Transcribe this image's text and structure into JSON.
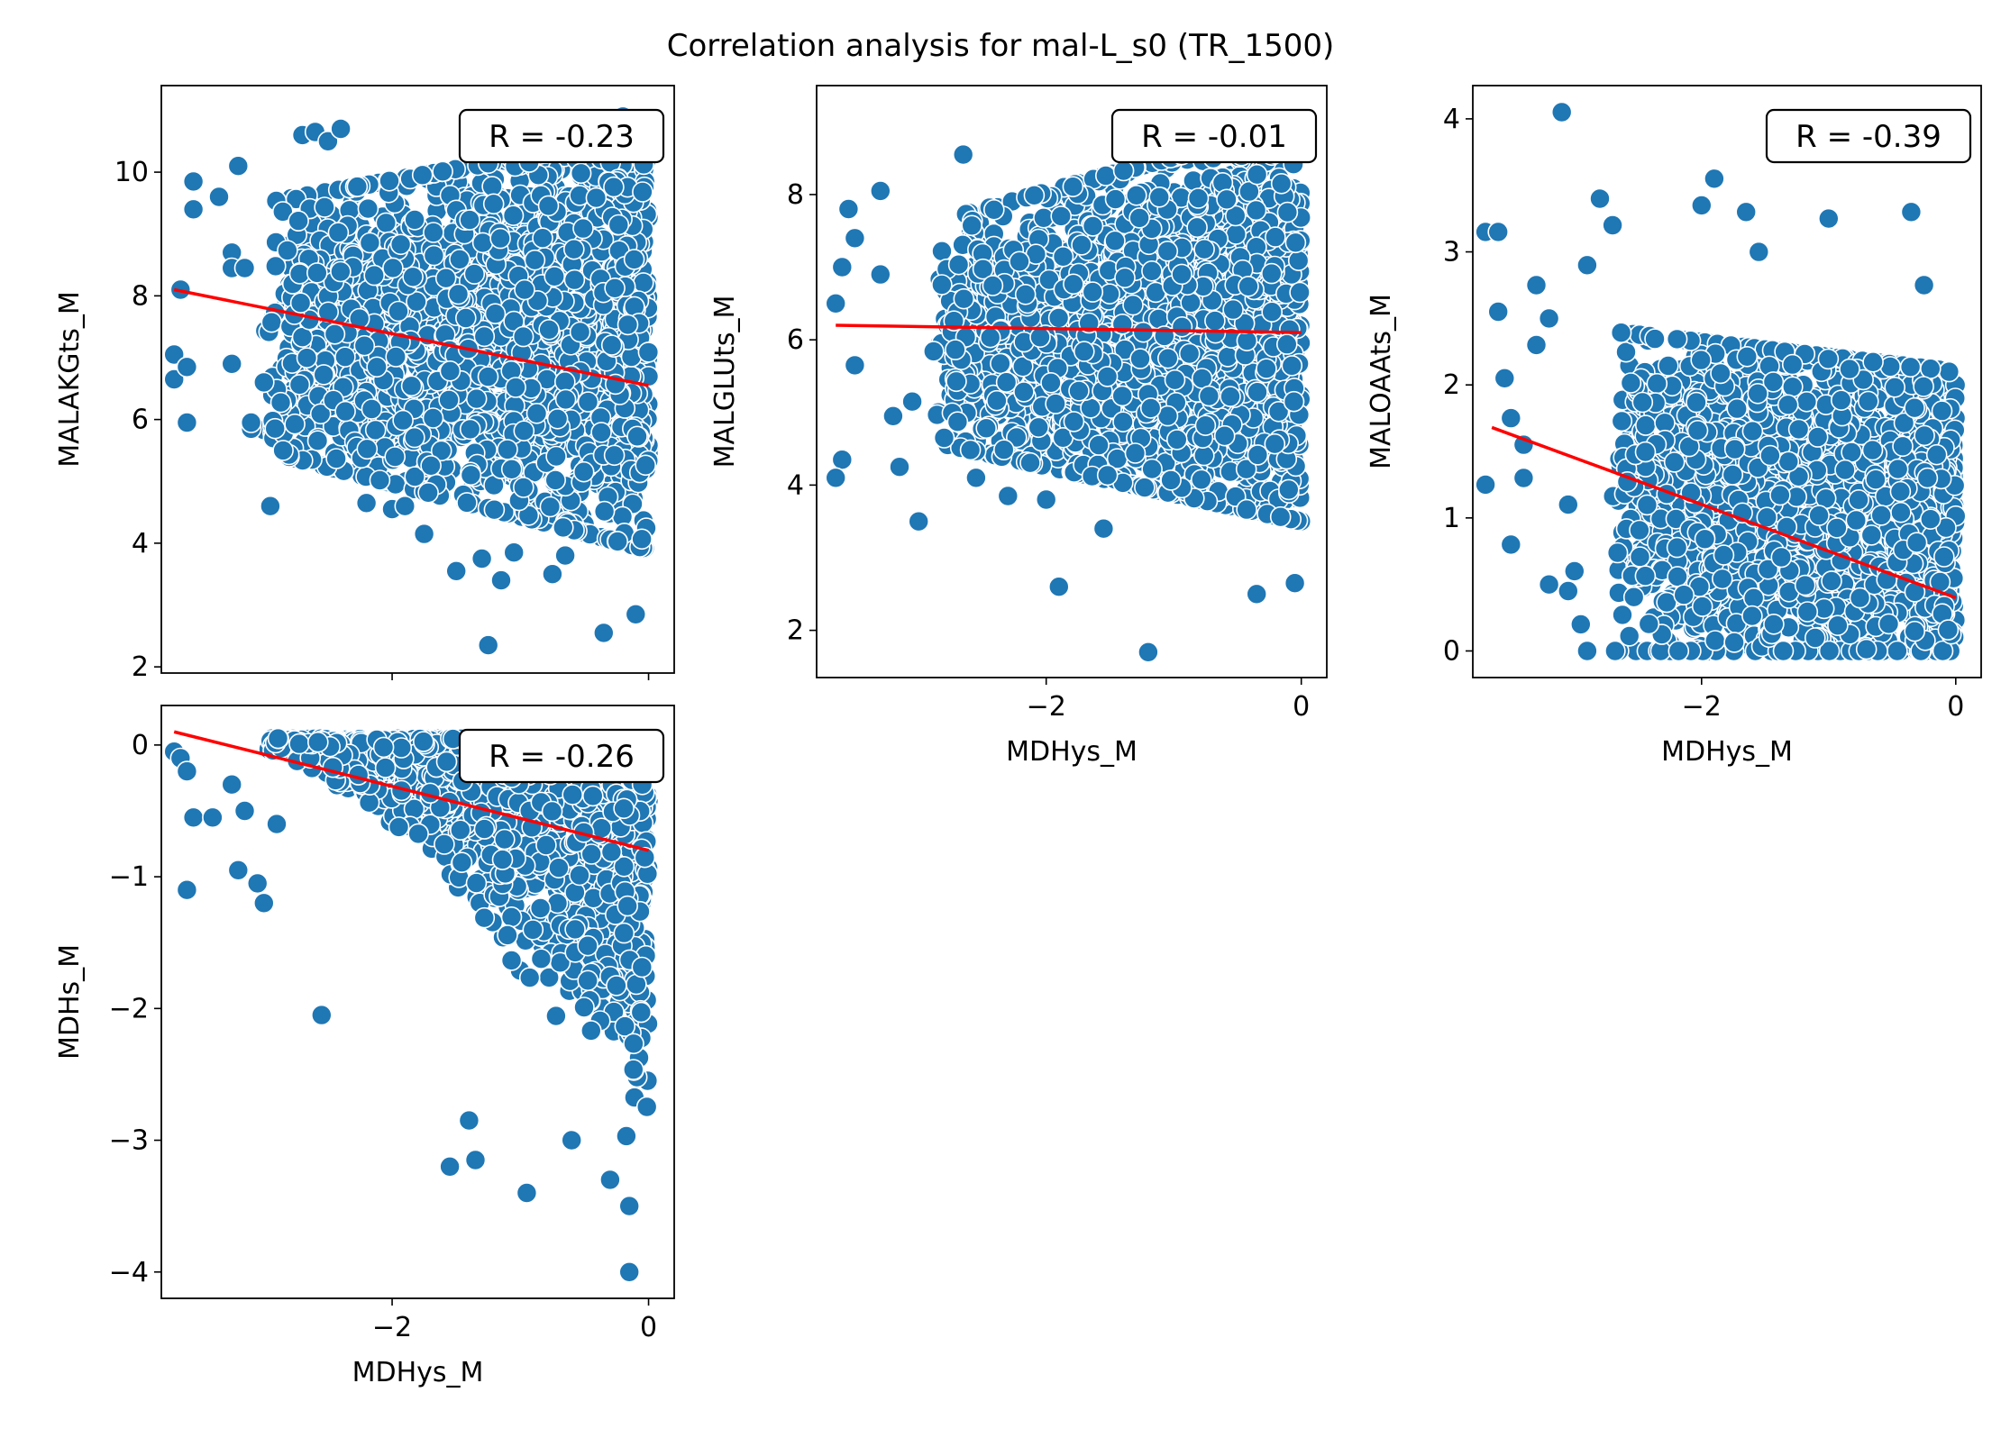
{
  "figure": {
    "title": "Correlation analysis for mal-L_s0 (TR_1500)",
    "colors": {
      "points": "#1f77b4",
      "point_edge": "#ffffff",
      "fit_line": "#ff0000",
      "axis": "#000000"
    }
  },
  "chart_data": [
    {
      "type": "scatter",
      "xlabel": "",
      "ylabel": "MALAKGts_M",
      "r_label": "R = -0.23",
      "xlim": [
        -3.8,
        0.2
      ],
      "ylim": [
        1.9,
        11.4
      ],
      "xticks": [
        -2,
        0
      ],
      "xtick_labels": [
        "",
        ""
      ],
      "yticks": [
        2,
        4,
        6,
        8,
        10
      ],
      "ytick_labels": [
        "2",
        "4",
        "6",
        "8",
        "10"
      ],
      "fit": {
        "x": [
          -3.7,
          0
        ],
        "y": [
          8.1,
          6.55
        ]
      },
      "cloud": {
        "x_min": -3.0,
        "x_max": 0.0,
        "lo_left": 5.5,
        "hi_left": 9.5,
        "lo_right": 3.9,
        "hi_right": 10.6,
        "n": 2200,
        "seed": 11
      },
      "outliers": [
        [
          -3.7,
          7.05
        ],
        [
          -3.7,
          6.65
        ],
        [
          -3.65,
          8.1
        ],
        [
          -3.6,
          6.85
        ],
        [
          -3.6,
          5.95
        ],
        [
          -3.55,
          9.4
        ],
        [
          -3.55,
          9.85
        ],
        [
          -3.35,
          9.6
        ],
        [
          -3.25,
          8.7
        ],
        [
          -3.25,
          8.45
        ],
        [
          -3.25,
          6.9
        ],
        [
          -3.2,
          10.1
        ],
        [
          -3.15,
          8.45
        ],
        [
          -3.1,
          5.85
        ],
        [
          -3.1,
          5.95
        ],
        [
          -3.0,
          6.6
        ],
        [
          -2.95,
          4.6
        ],
        [
          -2.85,
          5.5
        ],
        [
          -2.7,
          10.6
        ],
        [
          -2.6,
          10.65
        ],
        [
          -2.5,
          10.5
        ],
        [
          -2.4,
          10.7
        ],
        [
          -2.2,
          4.65
        ],
        [
          -2.0,
          4.55
        ],
        [
          -1.9,
          4.6
        ],
        [
          -1.75,
          4.15
        ],
        [
          -1.5,
          3.55
        ],
        [
          -1.3,
          3.75
        ],
        [
          -1.25,
          2.35
        ],
        [
          -1.15,
          3.4
        ],
        [
          -1.05,
          3.85
        ],
        [
          -0.75,
          3.5
        ],
        [
          -0.65,
          3.8
        ],
        [
          -0.35,
          2.55
        ],
        [
          -0.1,
          2.85
        ],
        [
          -0.2,
          10.9
        ],
        [
          -0.5,
          10.6
        ]
      ]
    },
    {
      "type": "scatter",
      "xlabel": "MDHys_M",
      "ylabel": "MALGLUts_M",
      "r_label": "R = -0.01",
      "xlim": [
        -3.8,
        0.2
      ],
      "ylim": [
        1.35,
        9.5
      ],
      "xticks": [
        -2,
        0
      ],
      "xtick_labels": [
        "−2",
        "0"
      ],
      "yticks": [
        2,
        4,
        6,
        8
      ],
      "ytick_labels": [
        "2",
        "4",
        "6",
        "8"
      ],
      "fit": {
        "x": [
          -3.65,
          0
        ],
        "y": [
          6.2,
          6.1
        ]
      },
      "cloud": {
        "x_min": -2.9,
        "x_max": 0.0,
        "lo_left": 4.6,
        "hi_left": 7.6,
        "lo_right": 3.5,
        "hi_right": 9.0,
        "n": 2300,
        "seed": 23
      },
      "outliers": [
        [
          -3.65,
          6.5
        ],
        [
          -3.6,
          7.0
        ],
        [
          -3.55,
          7.8
        ],
        [
          -3.5,
          7.4
        ],
        [
          -3.5,
          5.65
        ],
        [
          -3.6,
          4.35
        ],
        [
          -3.65,
          4.1
        ],
        [
          -3.3,
          8.05
        ],
        [
          -3.3,
          6.9
        ],
        [
          -3.2,
          4.95
        ],
        [
          -3.15,
          4.25
        ],
        [
          -3.05,
          5.15
        ],
        [
          -3.0,
          3.5
        ],
        [
          -2.8,
          4.65
        ],
        [
          -2.65,
          8.55
        ],
        [
          -2.55,
          4.1
        ],
        [
          -2.3,
          3.85
        ],
        [
          -2.0,
          3.8
        ],
        [
          -1.9,
          2.6
        ],
        [
          -1.55,
          3.4
        ],
        [
          -1.2,
          1.7
        ],
        [
          -0.35,
          2.5
        ],
        [
          -0.05,
          2.65
        ],
        [
          -0.9,
          9.05
        ],
        [
          -0.5,
          9.05
        ]
      ]
    },
    {
      "type": "scatter",
      "xlabel": "MDHys_M",
      "ylabel": "MALOAAts_M",
      "r_label": "R = -0.39",
      "xlim": [
        -3.8,
        0.2
      ],
      "ylim": [
        -0.2,
        4.25
      ],
      "xticks": [
        -2,
        0
      ],
      "xtick_labels": [
        "−2",
        "0"
      ],
      "yticks": [
        0,
        1,
        2,
        3,
        4
      ],
      "ytick_labels": [
        "0",
        "1",
        "2",
        "3",
        "4"
      ],
      "fit": {
        "x": [
          -3.65,
          0
        ],
        "y": [
          1.68,
          0.4
        ]
      },
      "cloud": {
        "x_min": -2.7,
        "x_max": 0.0,
        "lo_left": 0.0,
        "hi_left": 2.4,
        "lo_right": 0.0,
        "hi_right": 2.1,
        "n": 2300,
        "seed": 37
      },
      "outliers": [
        [
          -3.7,
          3.15
        ],
        [
          -3.6,
          3.15
        ],
        [
          -3.6,
          2.55
        ],
        [
          -3.55,
          2.05
        ],
        [
          -3.5,
          1.75
        ],
        [
          -3.7,
          1.25
        ],
        [
          -3.5,
          0.8
        ],
        [
          -3.3,
          2.75
        ],
        [
          -3.3,
          2.3
        ],
        [
          -3.2,
          2.5
        ],
        [
          -3.1,
          4.05
        ],
        [
          -3.05,
          1.1
        ],
        [
          -3.0,
          0.6
        ],
        [
          -3.05,
          0.45
        ],
        [
          -3.2,
          0.5
        ],
        [
          -2.9,
          2.9
        ],
        [
          -2.8,
          3.4
        ],
        [
          -2.7,
          3.2
        ],
        [
          -2.0,
          3.35
        ],
        [
          -1.9,
          3.55
        ],
        [
          -1.65,
          3.3
        ],
        [
          -1.55,
          3.0
        ],
        [
          -1.0,
          3.25
        ],
        [
          -0.35,
          3.3
        ],
        [
          -0.25,
          2.75
        ],
        [
          -3.4,
          1.55
        ],
        [
          -3.4,
          1.3
        ],
        [
          -2.95,
          0.2
        ],
        [
          -2.9,
          0.0
        ]
      ]
    },
    {
      "type": "scatter",
      "xlabel": "MDHys_M",
      "ylabel": "MDHs_M",
      "r_label": "R = -0.26",
      "xlim": [
        -3.8,
        0.2
      ],
      "ylim": [
        -4.2,
        0.3
      ],
      "xticks": [
        -2,
        0
      ],
      "xtick_labels": [
        "−2",
        "0"
      ],
      "yticks": [
        -4,
        -3,
        -2,
        -1,
        0
      ],
      "ytick_labels": [
        "−4",
        "−3",
        "−2",
        "−1",
        "0"
      ],
      "fit": {
        "x": [
          -3.7,
          0
        ],
        "y": [
          0.1,
          -0.8
        ]
      },
      "triangle": {
        "apex_x": -3.0,
        "n": 2100,
        "seed": 53
      },
      "outliers": [
        [
          -3.7,
          -0.05
        ],
        [
          -3.65,
          -0.1
        ],
        [
          -3.6,
          -0.2
        ],
        [
          -3.55,
          -0.55
        ],
        [
          -3.6,
          -1.1
        ],
        [
          -3.4,
          -0.55
        ],
        [
          -3.25,
          -0.3
        ],
        [
          -3.2,
          -0.95
        ],
        [
          -3.15,
          -0.5
        ],
        [
          -3.05,
          -1.05
        ],
        [
          -3.0,
          -1.2
        ],
        [
          -2.9,
          -0.6
        ],
        [
          -2.55,
          -2.05
        ],
        [
          -1.55,
          -3.2
        ],
        [
          -1.4,
          -2.85
        ],
        [
          -1.35,
          -3.15
        ],
        [
          -0.95,
          -3.4
        ],
        [
          -0.6,
          -3.0
        ],
        [
          -0.3,
          -3.3
        ],
        [
          -0.15,
          -3.5
        ],
        [
          -0.15,
          -4.0
        ]
      ]
    }
  ]
}
